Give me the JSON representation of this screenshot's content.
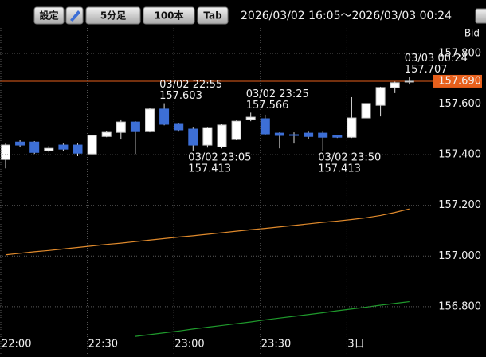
{
  "toolbar": {
    "buttons": [
      "設定",
      "5分足",
      "100本",
      "Tab"
    ],
    "range": "2026/03/02 16:05～2026/03/03 00:24"
  },
  "chart_data": {
    "type": "candlestick",
    "price_type": "Bid",
    "categories": [
      "22:00",
      null,
      null,
      null,
      null,
      null,
      "22:30",
      null,
      null,
      null,
      null,
      null,
      "23:00",
      null,
      null,
      null,
      null,
      null,
      "23:30",
      null,
      null,
      null,
      null,
      null,
      "3日",
      null,
      null,
      null,
      null
    ],
    "open": [
      157.381,
      157.45,
      157.45,
      157.416,
      157.438,
      157.438,
      157.403,
      157.472,
      157.488,
      157.529,
      157.491,
      157.58,
      157.523,
      157.501,
      157.438,
      157.431,
      157.46,
      157.539,
      157.542,
      157.485,
      157.479,
      157.485,
      157.485,
      157.476,
      157.469,
      157.545,
      157.595,
      157.665,
      157.687
    ],
    "high": [
      157.444,
      157.457,
      157.454,
      157.435,
      157.444,
      157.444,
      157.479,
      157.494,
      157.539,
      157.532,
      157.584,
      157.603,
      157.526,
      157.51,
      157.51,
      157.52,
      157.535,
      157.566,
      157.558,
      157.488,
      157.488,
      157.491,
      157.491,
      157.479,
      157.627,
      157.606,
      157.668,
      157.688,
      157.707
    ],
    "low": [
      157.346,
      157.431,
      157.403,
      157.409,
      157.413,
      157.394,
      157.4,
      157.469,
      157.46,
      157.403,
      157.488,
      157.516,
      157.491,
      157.413,
      157.428,
      157.425,
      157.457,
      157.532,
      157.479,
      157.425,
      157.444,
      157.463,
      157.413,
      157.466,
      157.466,
      157.542,
      157.551,
      157.643,
      157.677
    ],
    "close": [
      157.438,
      157.438,
      157.409,
      157.425,
      157.422,
      157.406,
      157.476,
      157.488,
      157.529,
      157.491,
      157.58,
      157.52,
      157.498,
      157.438,
      157.507,
      157.517,
      157.532,
      157.548,
      157.482,
      157.476,
      157.476,
      157.472,
      157.469,
      157.469,
      157.545,
      157.602,
      157.665,
      157.684,
      157.69
    ],
    "up_color": "#ffffff",
    "down_color": "#3d6fd6",
    "lines": [
      {
        "color": "#e08a2c",
        "values": [
          157.005,
          157.011,
          157.017,
          157.022,
          157.028,
          157.034,
          157.04,
          157.046,
          157.051,
          157.057,
          157.063,
          157.069,
          157.075,
          157.08,
          157.086,
          157.092,
          157.098,
          157.104,
          157.109,
          157.115,
          157.121,
          157.127,
          157.133,
          157.138,
          157.144,
          157.151,
          157.16,
          157.172,
          157.186
        ]
      },
      {
        "color": "#1f9a2c",
        "values": [
          null,
          null,
          null,
          null,
          null,
          null,
          null,
          null,
          null,
          156.683,
          156.69,
          156.697,
          156.704,
          156.712,
          156.719,
          156.726,
          156.733,
          156.74,
          156.748,
          156.755,
          156.762,
          156.769,
          156.776,
          156.784,
          156.791,
          156.798,
          156.806,
          156.813,
          156.82
        ]
      }
    ],
    "current_price": {
      "value": 157.69,
      "label": "157.690",
      "color": "#e8601c"
    },
    "annotations": [
      {
        "label": "03/02 22:55",
        "value": 157.603,
        "position": "above"
      },
      {
        "label": "03/02 23:05",
        "value": 157.413,
        "position": "below"
      },
      {
        "label": "03/02 23:25",
        "value": 157.566,
        "position": "above"
      },
      {
        "label": "03/02 23:50",
        "value": 157.413,
        "position": "below"
      },
      {
        "label": "03/03 00:24",
        "value": 157.707,
        "position": "above"
      }
    ],
    "ylim": [
      156.677,
      157.91
    ],
    "yticks": [
      {
        "value": 156.8,
        "label": "156.800"
      },
      {
        "value": 157.0,
        "label": "157.000"
      },
      {
        "value": 157.2,
        "label": "157.200"
      },
      {
        "value": 157.4,
        "label": "157.400"
      },
      {
        "value": 157.6,
        "label": "157.600"
      },
      {
        "value": 157.8,
        "label": "157.800"
      }
    ],
    "grid": true
  }
}
